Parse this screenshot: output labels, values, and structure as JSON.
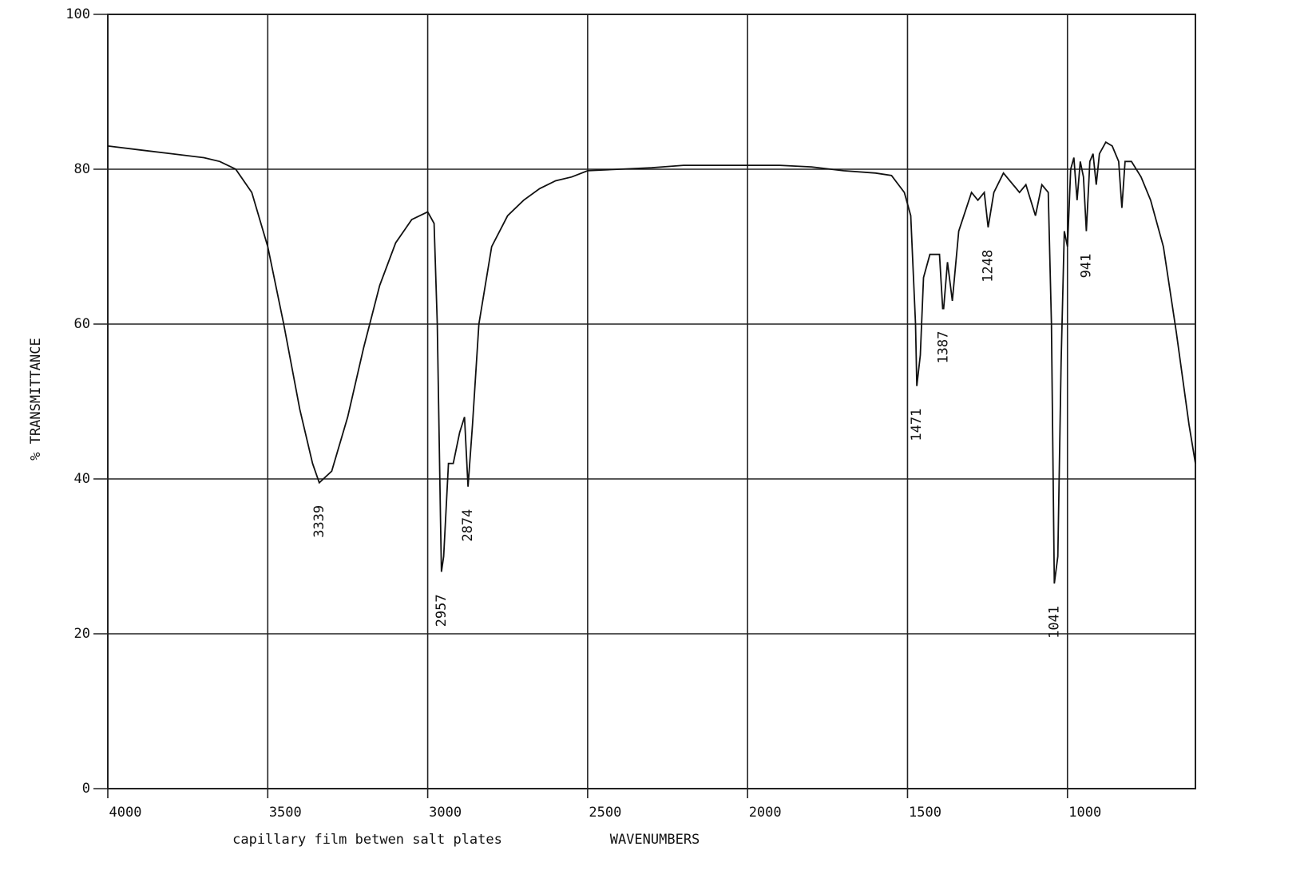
{
  "chart_data": {
    "type": "line",
    "y_label": "% TRANSMITTANCE",
    "x_label": "WAVENUMBERS",
    "note": "capillary film betwen salt plates",
    "xlim": [
      4000,
      600
    ],
    "ylim": [
      0,
      100
    ],
    "xticks": [
      4000,
      3500,
      3000,
      2500,
      2000,
      1500,
      1000
    ],
    "yticks": [
      0,
      20,
      40,
      60,
      80,
      100
    ],
    "grid": true,
    "peaks": [
      3339,
      2957,
      2874,
      1471,
      1387,
      1248,
      1041,
      941
    ],
    "x": [
      4000,
      3900,
      3800,
      3700,
      3650,
      3600,
      3550,
      3500,
      3450,
      3400,
      3360,
      3339,
      3300,
      3250,
      3200,
      3150,
      3100,
      3050,
      3000,
      2980,
      2970,
      2960,
      2957,
      2950,
      2935,
      2920,
      2900,
      2885,
      2874,
      2860,
      2840,
      2800,
      2750,
      2700,
      2650,
      2600,
      2550,
      2500,
      2400,
      2300,
      2200,
      2100,
      2000,
      1900,
      1800,
      1700,
      1600,
      1550,
      1510,
      1490,
      1475,
      1471,
      1460,
      1450,
      1430,
      1400,
      1390,
      1387,
      1375,
      1360,
      1340,
      1300,
      1280,
      1260,
      1248,
      1230,
      1200,
      1170,
      1150,
      1130,
      1100,
      1080,
      1060,
      1050,
      1041,
      1030,
      1020,
      1010,
      1000,
      990,
      980,
      970,
      960,
      950,
      941,
      930,
      920,
      910,
      900,
      880,
      860,
      840,
      830,
      820,
      800,
      770,
      740,
      700,
      660,
      620,
      600
    ],
    "series": [
      {
        "name": "spectrum",
        "color": "#111111",
        "values": [
          83,
          82.5,
          82,
          81.5,
          81,
          80,
          77,
          70,
          60,
          49,
          42,
          39.5,
          41,
          48,
          57,
          65,
          70.5,
          73.5,
          74.5,
          73,
          60,
          35,
          28,
          30,
          42,
          42,
          46,
          48,
          39,
          47,
          60,
          70,
          74,
          76,
          77.5,
          78.5,
          79,
          79.8,
          80,
          80.2,
          80.5,
          80.5,
          80.5,
          80.5,
          80.3,
          79.8,
          79.5,
          79.2,
          77,
          74,
          60,
          52,
          56,
          66,
          69,
          69,
          62,
          62,
          68,
          63,
          72,
          77,
          76,
          77,
          72.5,
          77,
          79.5,
          78,
          77,
          78,
          74,
          78,
          77,
          60,
          26.5,
          30,
          55,
          72,
          70,
          80,
          81.5,
          76,
          81,
          79,
          72,
          81,
          82,
          78,
          82,
          83.5,
          83,
          81,
          75,
          81,
          81,
          79,
          76,
          70,
          59,
          47,
          42
        ]
      }
    ]
  }
}
